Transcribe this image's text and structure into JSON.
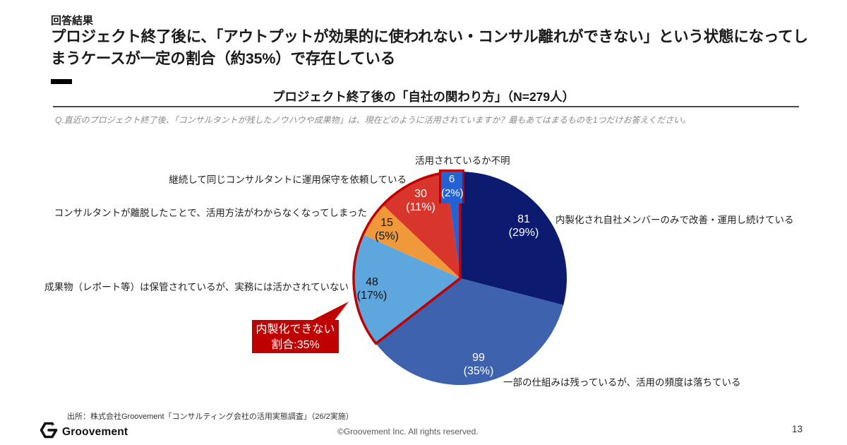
{
  "page": {
    "eyebrow": "回答結果",
    "title": "プロジェクト終了後に、「アウトプットが効果的に使われない・コンサル離れができない」という状態になってしまうケースが一定の割合（約35%）で存在している",
    "source": "出所：株式会社Groovement「コンサルティング会社の活用実態調査」（26/2実施）",
    "logo_text": "Groovement",
    "copyright": "©Groovement Inc. All rights reserved.",
    "page_number": "13"
  },
  "chart_header": {
    "title": "プロジェクト終了後の「自社の関わり方」（N=279人）",
    "question": "Q.直近のプロジェクト終了後、「コンサルタントが残したノウハウや成果物」は、現在どのように活用されていますか？最もあてはまるものを1つだけお答えください。"
  },
  "chart_data": {
    "type": "pie",
    "title": "プロジェクト終了後の「自社の関わり方」（N=279人）",
    "n_total": 279,
    "start_angle": "12 o'clock",
    "direction": "clockwise",
    "slices": [
      {
        "label": "内製化され自社メンバーのみで改善・運用し続けている",
        "value": 81,
        "pct": "29%",
        "pct_label": "(29%)",
        "color": "#0c1b70",
        "text": "light",
        "highlighted": false
      },
      {
        "label": "一部の仕組みは残っているが、活用の頻度は落ちている",
        "value": 99,
        "pct": "35%",
        "pct_label": "(35%)",
        "color": "#3e62ae",
        "text": "light",
        "highlighted": false
      },
      {
        "label": "成果物（レポート等）は保管されているが、実務には活かされていない",
        "value": 48,
        "pct": "17%",
        "pct_label": "(17%)",
        "color": "#5ea7de",
        "text": "dark",
        "highlighted": true
      },
      {
        "label": "コンサルタントが離脱したことで、活用方法がわからなくなってしまった",
        "value": 15,
        "pct": "5%",
        "pct_label": "(5%)",
        "color": "#f0993b",
        "text": "dark",
        "highlighted": true
      },
      {
        "label": "継続して同じコンサルタントに運用保守を依頼している",
        "value": 30,
        "pct": "11%",
        "pct_label": "(11%)",
        "color": "#d8352c",
        "text": "light",
        "highlighted": true
      },
      {
        "label": "活用されているか不明",
        "value": 6,
        "pct": "2%",
        "pct_label": "(2%)",
        "color": "#2462d3",
        "text": "light",
        "highlighted": true
      }
    ],
    "highlight_outline_color": "#c00000",
    "callout": {
      "line1": "内製化できない",
      "line2": "割合:35%",
      "bg": "#c00000",
      "text_color": "#ffffff"
    }
  }
}
